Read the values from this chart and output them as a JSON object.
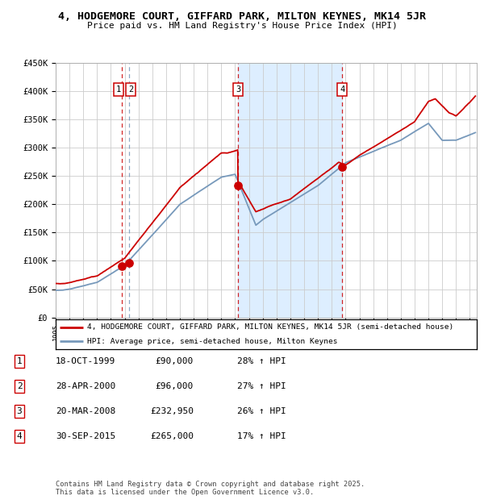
{
  "title": "4, HODGEMORE COURT, GIFFARD PARK, MILTON KEYNES, MK14 5JR",
  "subtitle": "Price paid vs. HM Land Registry's House Price Index (HPI)",
  "ylim": [
    0,
    450000
  ],
  "yticks": [
    0,
    50000,
    100000,
    150000,
    200000,
    250000,
    300000,
    350000,
    400000,
    450000
  ],
  "ytick_labels": [
    "£0",
    "£50K",
    "£100K",
    "£150K",
    "£200K",
    "£250K",
    "£300K",
    "£350K",
    "£400K",
    "£450K"
  ],
  "xlim_start": 1995,
  "xlim_end": 2025.5,
  "transactions": [
    {
      "num": "1",
      "date": "18-OCT-1999",
      "price": 90000,
      "price_str": "£90,000",
      "pct": "28% ↑ HPI",
      "x_year": 1999.8
    },
    {
      "num": "2",
      "date": "28-APR-2000",
      "price": 96000,
      "price_str": "£96,000",
      "pct": "27% ↑ HPI",
      "x_year": 2000.32
    },
    {
      "num": "3",
      "date": "20-MAR-2008",
      "price": 232950,
      "price_str": "£232,950",
      "pct": "26% ↑ HPI",
      "x_year": 2008.22
    },
    {
      "num": "4",
      "date": "30-SEP-2015",
      "price": 265000,
      "price_str": "£265,000",
      "pct": "17% ↑ HPI",
      "x_year": 2015.75
    }
  ],
  "legend_line1": "4, HODGEMORE COURT, GIFFARD PARK, MILTON KEYNES, MK14 5JR (semi-detached house)",
  "legend_line2": "HPI: Average price, semi-detached house, Milton Keynes",
  "footer": "Contains HM Land Registry data © Crown copyright and database right 2025.\nThis data is licensed under the Open Government Licence v3.0.",
  "red_color": "#cc0000",
  "blue_color": "#7799bb",
  "shading_color": "#ddeeff",
  "background_color": "#ffffff",
  "grid_color": "#cccccc"
}
